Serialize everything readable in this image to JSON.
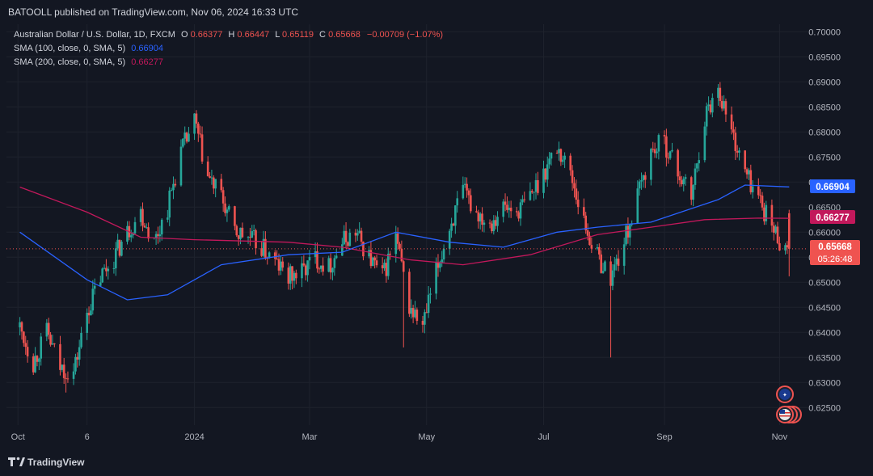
{
  "header": {
    "published_line": "BATOOLL published on TradingView.com, Nov 06, 2024 16:33 UTC"
  },
  "legend": {
    "symbol": "Australian Dollar / U.S. Dollar, 1D, FXCM",
    "o_label": "O",
    "o_value": "0.66377",
    "h_label": "H",
    "h_value": "0.66447",
    "l_label": "L",
    "l_value": "0.65119",
    "c_label": "C",
    "c_value": "0.65668",
    "change": "−0.00709 (−1.07%)",
    "sma100_label": "SMA (100, close, 0, SMA, 5)",
    "sma100_value": "0.66904",
    "sma200_label": "SMA (200, close, 0, SMA, 5)",
    "sma200_value": "0.66277"
  },
  "badges": {
    "sma100": "0.66904",
    "sma200": "0.66277",
    "price": "0.65668",
    "countdown": "05:26:48"
  },
  "brand": {
    "label": "TradingView"
  },
  "colors": {
    "background": "#131722",
    "grid": "#1e222d",
    "up": "#26a69a",
    "down": "#ef5350",
    "sma100": "#2962ff",
    "sma200": "#c2185b",
    "text": "#d1d4dc",
    "axis_text": "#b2b5be"
  },
  "chart_data": {
    "type": "candlestick",
    "title": "Australian Dollar / U.S. Dollar, 1D, FXCM",
    "yticks": [
      0.625,
      0.63,
      0.635,
      0.64,
      0.645,
      0.65,
      0.655,
      0.66,
      0.665,
      0.67,
      0.675,
      0.68,
      0.685,
      0.69,
      0.695,
      0.7
    ],
    "ytick_labels": [
      "0.62500",
      "0.63000",
      "0.63500",
      "0.64000",
      "0.64500",
      "0.65000",
      "0.65500",
      "0.66000",
      "0.66500",
      "0.67000",
      "0.67500",
      "0.68000",
      "0.68500",
      "0.69000",
      "0.69500",
      "0.70000"
    ],
    "ylim": [
      0.6215,
      0.7015
    ],
    "xlabels": [
      {
        "date": "2023-10-01",
        "label": "Oct"
      },
      {
        "date": "2023-11-06",
        "label": "6"
      },
      {
        "date": "2024-01-01",
        "label": "2024"
      },
      {
        "date": "2024-03-01",
        "label": "Mar"
      },
      {
        "date": "2024-05-01",
        "label": "May"
      },
      {
        "date": "2024-07-01",
        "label": "Jul"
      },
      {
        "date": "2024-09-02",
        "label": "Sep"
      },
      {
        "date": "2024-11-01",
        "label": "Nov"
      }
    ],
    "last_price": 0.65668,
    "price_path": [
      {
        "date": "2023-10-02",
        "close": 0.641
      },
      {
        "date": "2023-10-09",
        "close": 0.634
      },
      {
        "date": "2023-10-16",
        "close": 0.64
      },
      {
        "date": "2023-10-23",
        "close": 0.633
      },
      {
        "date": "2023-10-30",
        "close": 0.632
      },
      {
        "date": "2023-11-06",
        "close": 0.644
      },
      {
        "date": "2023-11-13",
        "close": 0.651
      },
      {
        "date": "2023-11-20",
        "close": 0.655
      },
      {
        "date": "2023-11-27",
        "close": 0.66
      },
      {
        "date": "2023-12-04",
        "close": 0.664
      },
      {
        "date": "2023-12-11",
        "close": 0.658
      },
      {
        "date": "2023-12-18",
        "close": 0.665
      },
      {
        "date": "2023-12-25",
        "close": 0.676
      },
      {
        "date": "2024-01-01",
        "close": 0.682
      },
      {
        "date": "2024-01-08",
        "close": 0.671
      },
      {
        "date": "2024-01-15",
        "close": 0.667
      },
      {
        "date": "2024-01-22",
        "close": 0.66
      },
      {
        "date": "2024-01-29",
        "close": 0.659
      },
      {
        "date": "2024-02-05",
        "close": 0.657
      },
      {
        "date": "2024-02-12",
        "close": 0.654
      },
      {
        "date": "2024-02-19",
        "close": 0.651
      },
      {
        "date": "2024-02-26",
        "close": 0.652
      },
      {
        "date": "2024-03-04",
        "close": 0.655
      },
      {
        "date": "2024-03-11",
        "close": 0.653
      },
      {
        "date": "2024-03-18",
        "close": 0.658
      },
      {
        "date": "2024-03-25",
        "close": 0.66
      },
      {
        "date": "2024-04-01",
        "close": 0.655
      },
      {
        "date": "2024-04-08",
        "close": 0.651
      },
      {
        "date": "2024-04-15",
        "close": 0.659
      },
      {
        "date": "2024-04-22",
        "close": 0.645
      },
      {
        "date": "2024-04-29",
        "close": 0.641
      },
      {
        "date": "2024-05-06",
        "close": 0.652
      },
      {
        "date": "2024-05-13",
        "close": 0.661
      },
      {
        "date": "2024-05-20",
        "close": 0.668
      },
      {
        "date": "2024-05-27",
        "close": 0.664
      },
      {
        "date": "2024-06-03",
        "close": 0.662
      },
      {
        "date": "2024-06-10",
        "close": 0.665
      },
      {
        "date": "2024-06-17",
        "close": 0.664
      },
      {
        "date": "2024-06-24",
        "close": 0.667
      },
      {
        "date": "2024-07-01",
        "close": 0.672
      },
      {
        "date": "2024-07-08",
        "close": 0.677
      },
      {
        "date": "2024-07-15",
        "close": 0.672
      },
      {
        "date": "2024-07-22",
        "close": 0.662
      },
      {
        "date": "2024-07-29",
        "close": 0.655
      },
      {
        "date": "2024-08-05",
        "close": 0.651
      },
      {
        "date": "2024-08-12",
        "close": 0.658
      },
      {
        "date": "2024-08-19",
        "close": 0.667
      },
      {
        "date": "2024-08-26",
        "close": 0.676
      },
      {
        "date": "2024-09-02",
        "close": 0.678
      },
      {
        "date": "2024-09-09",
        "close": 0.672
      },
      {
        "date": "2024-09-16",
        "close": 0.667
      },
      {
        "date": "2024-09-23",
        "close": 0.683
      },
      {
        "date": "2024-09-30",
        "close": 0.689
      },
      {
        "date": "2024-10-07",
        "close": 0.68
      },
      {
        "date": "2024-10-14",
        "close": 0.672
      },
      {
        "date": "2024-10-21",
        "close": 0.667
      },
      {
        "date": "2024-10-28",
        "close": 0.661
      },
      {
        "date": "2024-11-04",
        "close": 0.6567
      }
    ],
    "spikes": [
      {
        "date": "2024-08-05",
        "low": 0.635
      },
      {
        "date": "2024-04-19",
        "low": 0.637
      },
      {
        "date": "2023-10-26",
        "low": 0.628
      }
    ],
    "sma100": [
      {
        "date": "2023-10-02",
        "value": 0.66
      },
      {
        "date": "2023-11-06",
        "value": 0.6505
      },
      {
        "date": "2023-11-27",
        "value": 0.6465
      },
      {
        "date": "2023-12-18",
        "value": 0.6475
      },
      {
        "date": "2024-01-15",
        "value": 0.6535
      },
      {
        "date": "2024-02-19",
        "value": 0.6555
      },
      {
        "date": "2024-03-18",
        "value": 0.656
      },
      {
        "date": "2024-04-15",
        "value": 0.66
      },
      {
        "date": "2024-05-13",
        "value": 0.658
      },
      {
        "date": "2024-06-10",
        "value": 0.657
      },
      {
        "date": "2024-07-08",
        "value": 0.66
      },
      {
        "date": "2024-07-29",
        "value": 0.661
      },
      {
        "date": "2024-08-26",
        "value": 0.662
      },
      {
        "date": "2024-09-30",
        "value": 0.6665
      },
      {
        "date": "2024-10-14",
        "value": 0.6694
      },
      {
        "date": "2024-11-06",
        "value": 0.66904
      }
    ],
    "sma200": [
      {
        "date": "2023-10-02",
        "value": 0.669
      },
      {
        "date": "2023-11-06",
        "value": 0.664
      },
      {
        "date": "2023-12-04",
        "value": 0.659
      },
      {
        "date": "2024-01-01",
        "value": 0.6585
      },
      {
        "date": "2024-02-19",
        "value": 0.658
      },
      {
        "date": "2024-03-18",
        "value": 0.657
      },
      {
        "date": "2024-04-22",
        "value": 0.6545
      },
      {
        "date": "2024-05-20",
        "value": 0.6535
      },
      {
        "date": "2024-06-24",
        "value": 0.6555
      },
      {
        "date": "2024-07-29",
        "value": 0.6595
      },
      {
        "date": "2024-08-26",
        "value": 0.661
      },
      {
        "date": "2024-09-23",
        "value": 0.6625
      },
      {
        "date": "2024-10-21",
        "value": 0.6628
      },
      {
        "date": "2024-11-06",
        "value": 0.66277
      }
    ]
  }
}
